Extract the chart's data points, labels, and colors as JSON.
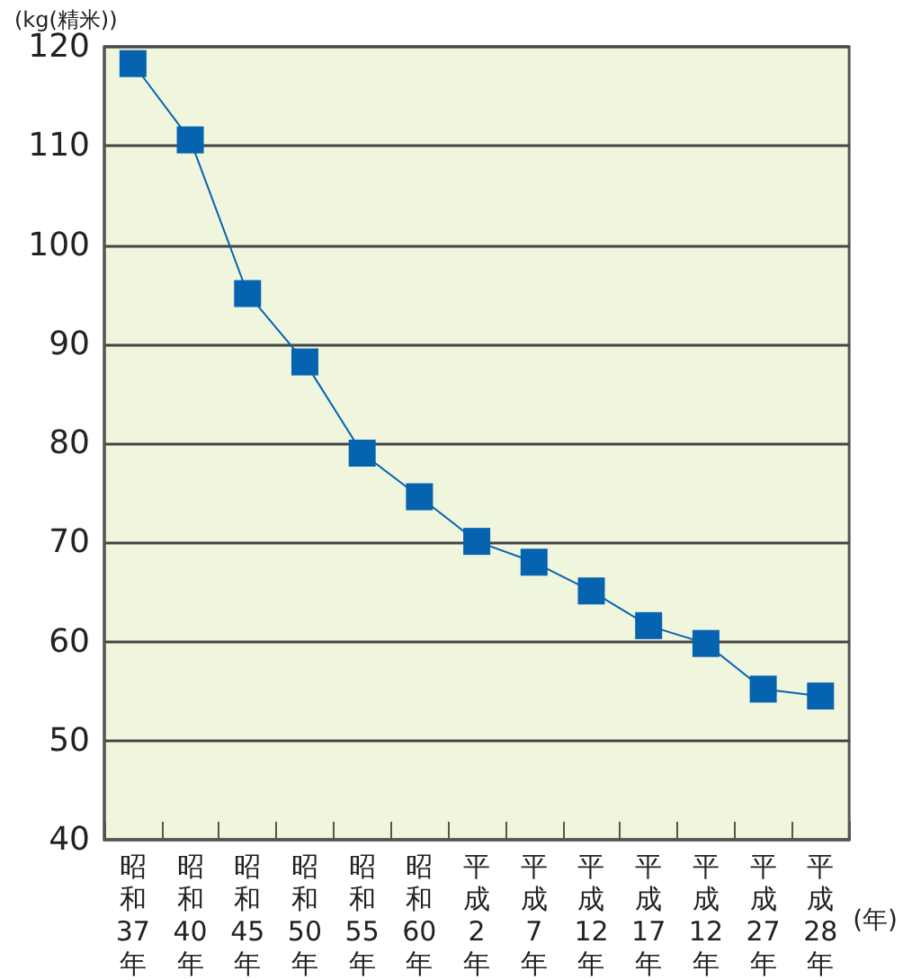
{
  "chart_data": {
    "type": "line",
    "ylabel": "(kg(精米))",
    "xlabel": "(年)",
    "categories": [
      "昭和37年",
      "昭和40年",
      "昭和45年",
      "昭和50年",
      "昭和55年",
      "昭和60年",
      "平成2年",
      "平成7年",
      "平成12年",
      "平成17年",
      "平成12年",
      "平成27年",
      "平成28年"
    ],
    "series": [
      {
        "color": "#0563b0",
        "values": [
          118.3,
          110.6,
          95.1,
          88.2,
          79.0,
          74.6,
          70.1,
          68.0,
          65.1,
          61.6,
          59.8,
          55.2,
          54.5
        ]
      }
    ],
    "ylim": [
      40,
      120
    ],
    "yticks": [
      40,
      50,
      60,
      70,
      80,
      90,
      100,
      110,
      120
    ],
    "grid": "y",
    "marker": "square",
    "line_style": "solid"
  }
}
